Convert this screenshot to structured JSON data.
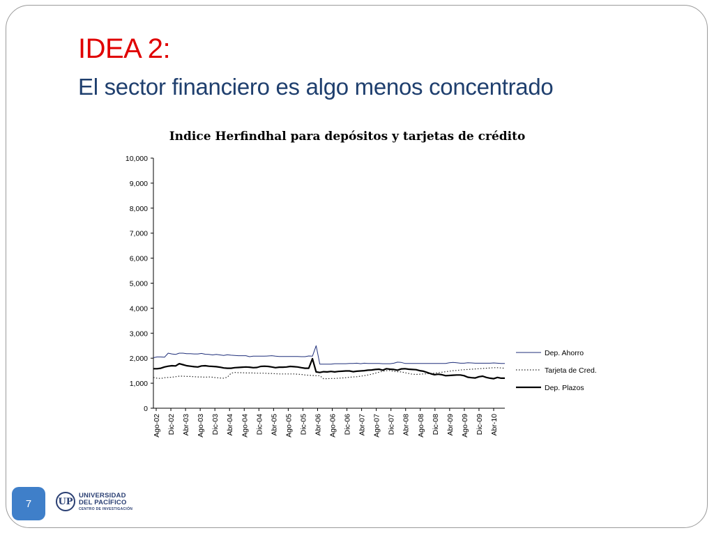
{
  "slide": {
    "title_line1": "IDEA 2:",
    "title_line2": "El sector financiero es algo menos concentrado",
    "page_number": "7",
    "logo_line1": "UNIVERSIDAD",
    "logo_line2": "DEL PACÍFICO",
    "logo_line3": "CENTRO DE INVESTIGACIÓN",
    "colors": {
      "title_accent": "#e00000",
      "title_main": "#1f3f6e",
      "page_badge": "#3f7fc9"
    }
  },
  "chart_data": {
    "type": "line",
    "title": "Indice Herfindhal para depósitos y tarjetas de crédito",
    "xlabel": "",
    "ylabel": "",
    "ylim": [
      0,
      10000
    ],
    "yticks": [
      "0",
      "1,000",
      "2,000",
      "3,000",
      "4,000",
      "5,000",
      "6,000",
      "7,000",
      "8,000",
      "9,000",
      "10,000"
    ],
    "xtick_labels": [
      "Ago-02",
      "Dic-02",
      "Abr-03",
      "Ago-03",
      "Dic-03",
      "Abr-04",
      "Ago-04",
      "Dic-04",
      "Abr-05",
      "Ago-05",
      "Dic-05",
      "Abr-06",
      "Ago-06",
      "Dic-06",
      "Abr-07",
      "Ago-07",
      "Dic-07",
      "Abr-08",
      "Ago-08",
      "Dic-08",
      "Abr-09",
      "Ago-09",
      "Dic-09",
      "Abr-10"
    ],
    "legend_position": "right",
    "grid": false,
    "series": [
      {
        "name": "Dep. Ahorro",
        "style": "solid-thin",
        "color": "#1f2f7a",
        "values": [
          2020,
          2050,
          2050,
          2040,
          2200,
          2170,
          2150,
          2200,
          2200,
          2180,
          2180,
          2170,
          2170,
          2190,
          2160,
          2150,
          2130,
          2150,
          2130,
          2110,
          2140,
          2120,
          2110,
          2100,
          2100,
          2100,
          2060,
          2080,
          2080,
          2080,
          2080,
          2090,
          2100,
          2080,
          2070,
          2070,
          2070,
          2070,
          2070,
          2070,
          2060,
          2060,
          2090,
          2080,
          2500,
          1760,
          1760,
          1760,
          1760,
          1780,
          1780,
          1780,
          1780,
          1790,
          1790,
          1800,
          1780,
          1800,
          1790,
          1790,
          1790,
          1790,
          1780,
          1780,
          1780,
          1800,
          1840,
          1830,
          1790,
          1790,
          1790,
          1790,
          1790,
          1790,
          1790,
          1790,
          1790,
          1790,
          1790,
          1790,
          1820,
          1830,
          1820,
          1800,
          1800,
          1820,
          1810,
          1800,
          1800,
          1800,
          1800,
          1800,
          1810,
          1800,
          1790,
          1790
        ]
      },
      {
        "name": "Tarjeta de Cred.",
        "style": "dotted",
        "color": "#222222",
        "values": [
          1230,
          1200,
          1190,
          1220,
          1230,
          1240,
          1260,
          1280,
          1280,
          1270,
          1270,
          1260,
          1250,
          1250,
          1240,
          1250,
          1240,
          1220,
          1210,
          1200,
          1240,
          1400,
          1430,
          1420,
          1420,
          1410,
          1410,
          1410,
          1400,
          1400,
          1400,
          1390,
          1390,
          1380,
          1370,
          1370,
          1370,
          1370,
          1370,
          1360,
          1350,
          1330,
          1320,
          1310,
          1300,
          1300,
          1180,
          1180,
          1190,
          1190,
          1200,
          1210,
          1220,
          1240,
          1250,
          1260,
          1280,
          1300,
          1330,
          1360,
          1400,
          1440,
          1480,
          1500,
          1510,
          1470,
          1460,
          1450,
          1420,
          1390,
          1360,
          1350,
          1360,
          1370,
          1380,
          1390,
          1400,
          1420,
          1440,
          1460,
          1480,
          1500,
          1510,
          1530,
          1540,
          1550,
          1560,
          1570,
          1580,
          1590,
          1600,
          1610,
          1620,
          1620,
          1610,
          1600
        ]
      },
      {
        "name": "Dep. Plazos",
        "style": "solid-thick",
        "color": "#000000",
        "values": [
          1580,
          1580,
          1600,
          1650,
          1680,
          1700,
          1690,
          1780,
          1740,
          1700,
          1680,
          1660,
          1650,
          1690,
          1700,
          1680,
          1670,
          1660,
          1640,
          1610,
          1600,
          1600,
          1620,
          1630,
          1640,
          1650,
          1640,
          1620,
          1630,
          1670,
          1680,
          1670,
          1650,
          1620,
          1640,
          1640,
          1650,
          1670,
          1660,
          1650,
          1620,
          1600,
          1600,
          1980,
          1450,
          1430,
          1460,
          1450,
          1470,
          1450,
          1470,
          1480,
          1490,
          1490,
          1460,
          1480,
          1490,
          1500,
          1520,
          1530,
          1550,
          1560,
          1520,
          1580,
          1560,
          1550,
          1520,
          1570,
          1580,
          1560,
          1550,
          1540,
          1500,
          1480,
          1430,
          1380,
          1340,
          1360,
          1340,
          1300,
          1310,
          1320,
          1330,
          1330,
          1300,
          1240,
          1220,
          1210,
          1260,
          1280,
          1230,
          1200,
          1180,
          1230,
          1200,
          1200
        ]
      }
    ]
  }
}
